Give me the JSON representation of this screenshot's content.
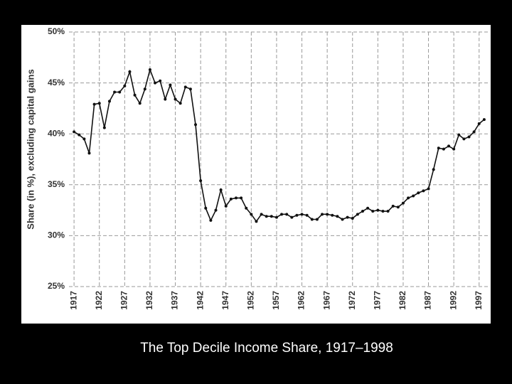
{
  "chart_data": {
    "type": "line",
    "title": "The Top Decile Income Share, 1917–1998",
    "y_label": "Share (in %), excluding capital gains",
    "x": [
      1917,
      1918,
      1919,
      1920,
      1921,
      1922,
      1923,
      1924,
      1925,
      1926,
      1927,
      1928,
      1929,
      1930,
      1931,
      1932,
      1933,
      1934,
      1935,
      1936,
      1937,
      1938,
      1939,
      1940,
      1941,
      1942,
      1943,
      1944,
      1945,
      1946,
      1947,
      1948,
      1949,
      1950,
      1951,
      1952,
      1953,
      1954,
      1955,
      1956,
      1957,
      1958,
      1959,
      1960,
      1961,
      1962,
      1963,
      1964,
      1965,
      1966,
      1967,
      1968,
      1969,
      1970,
      1971,
      1972,
      1973,
      1974,
      1975,
      1976,
      1977,
      1978,
      1979,
      1980,
      1981,
      1982,
      1983,
      1984,
      1985,
      1986,
      1987,
      1988,
      1989,
      1990,
      1991,
      1992,
      1993,
      1994,
      1995,
      1996,
      1997,
      1998
    ],
    "values": [
      40.2,
      39.9,
      39.5,
      38.1,
      42.9,
      43.0,
      40.6,
      43.2,
      44.1,
      44.1,
      44.7,
      46.1,
      43.8,
      43.0,
      44.4,
      46.3,
      45.0,
      45.2,
      43.4,
      44.8,
      43.4,
      43.0,
      44.6,
      44.4,
      40.9,
      35.4,
      32.7,
      31.5,
      32.5,
      34.5,
      32.9,
      33.6,
      33.7,
      33.7,
      32.7,
      32.1,
      31.4,
      32.1,
      31.9,
      31.9,
      31.8,
      32.1,
      32.1,
      31.8,
      32.0,
      32.1,
      32.0,
      31.6,
      31.6,
      32.1,
      32.1,
      32.0,
      31.9,
      31.6,
      31.8,
      31.7,
      32.1,
      32.4,
      32.7,
      32.4,
      32.5,
      32.4,
      32.4,
      32.9,
      32.8,
      33.2,
      33.7,
      33.9,
      34.2,
      34.4,
      34.6,
      36.5,
      38.6,
      38.5,
      38.8,
      38.5,
      39.9,
      39.5,
      39.7,
      40.2,
      41.0,
      41.4
    ],
    "color": "#111111",
    "xlim": [
      1916,
      1999
    ],
    "xticks": [
      1917,
      1922,
      1927,
      1932,
      1937,
      1942,
      1947,
      1952,
      1957,
      1962,
      1967,
      1972,
      1977,
      1982,
      1987,
      1992,
      1997
    ],
    "ylim": [
      25,
      50
    ],
    "yticks": [
      {
        "value": 25,
        "label": "25%"
      },
      {
        "value": 30,
        "label": "30%"
      },
      {
        "value": 35,
        "label": "35%"
      },
      {
        "value": 40,
        "label": "40%"
      },
      {
        "value": 45,
        "label": "45%"
      },
      {
        "value": 50,
        "label": "50%"
      }
    ],
    "grid": true
  }
}
